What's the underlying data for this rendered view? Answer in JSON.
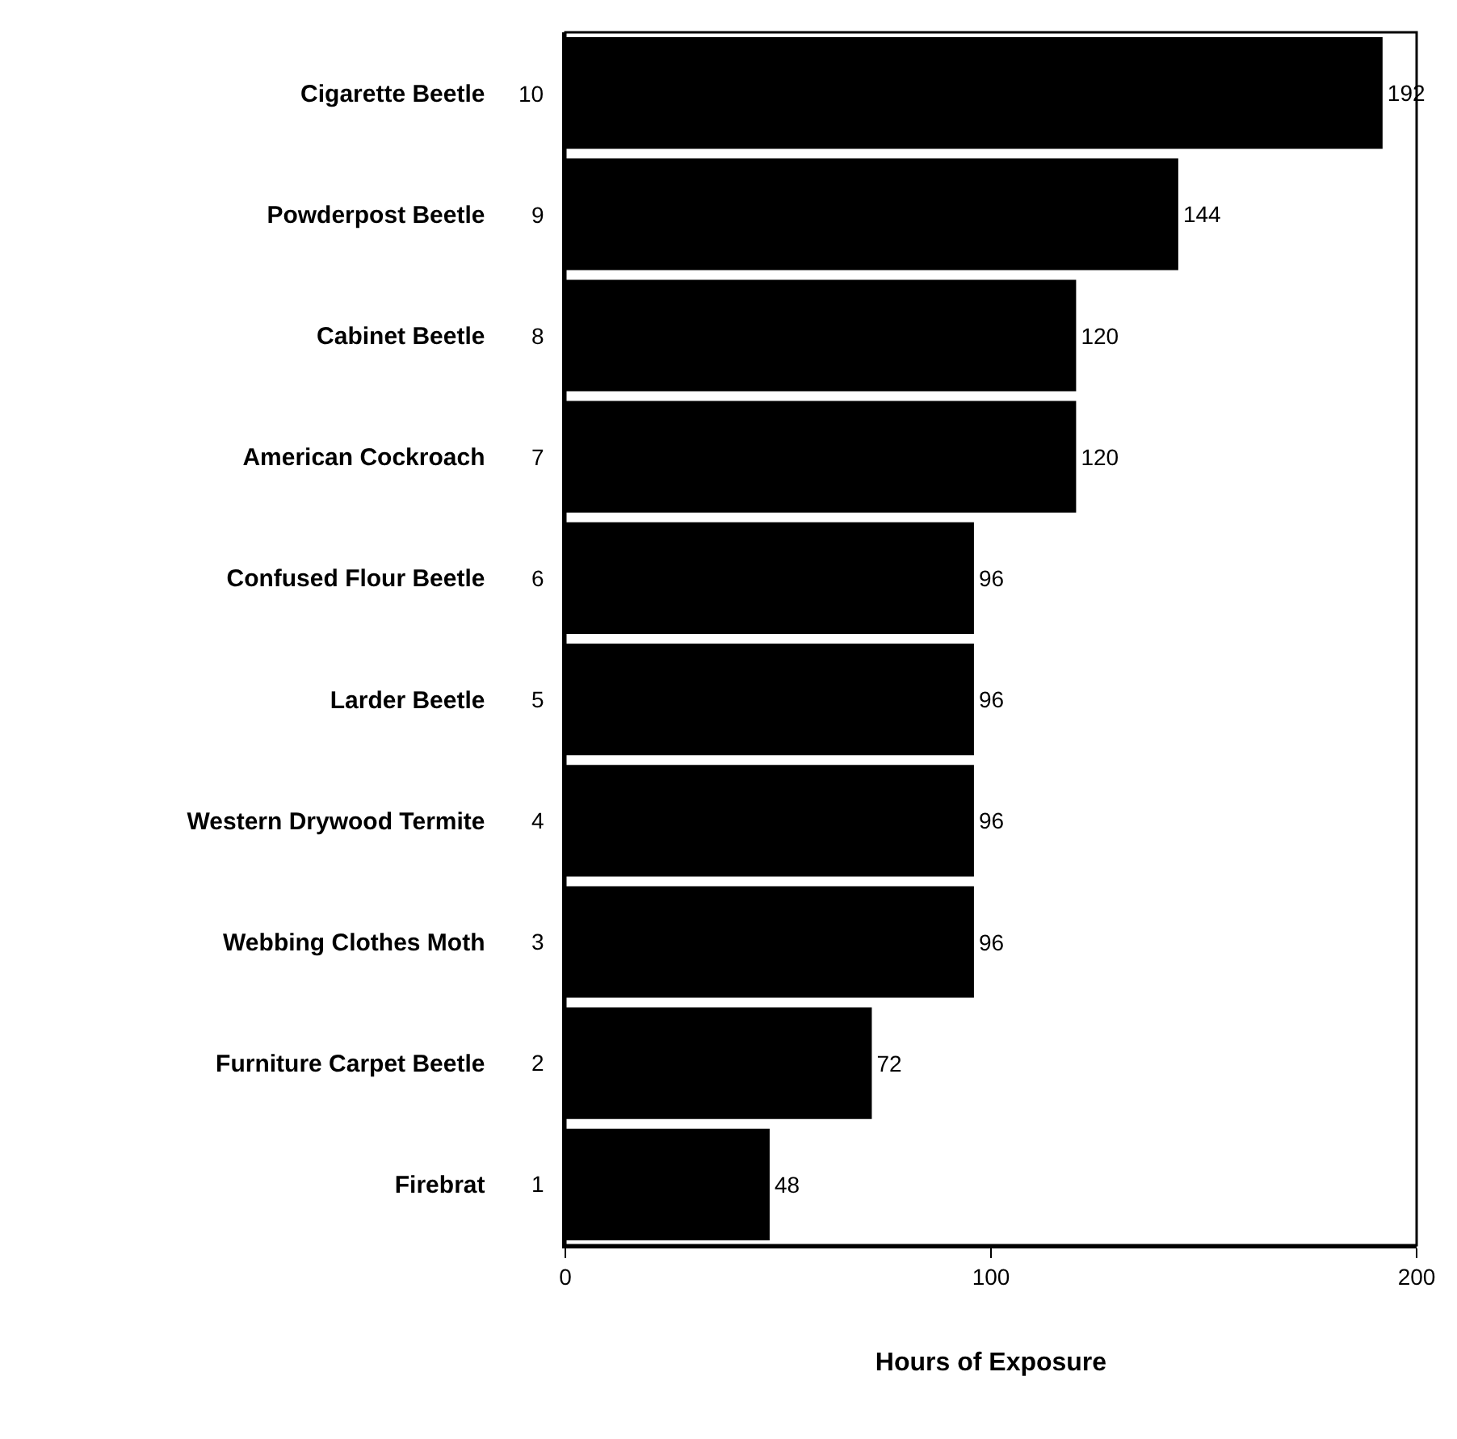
{
  "chart_data": {
    "type": "bar",
    "orientation": "horizontal",
    "xlabel": "Hours of Exposure",
    "categories": [
      "Cigarette Beetle",
      "Powderpost Beetle",
      "Cabinet Beetle",
      "American Cockroach",
      "Confused Flour Beetle",
      "Larder Beetle",
      "Western Drywood Termite",
      "Webbing Clothes Moth",
      "Furniture Carpet Beetle",
      "Firebrat"
    ],
    "values": [
      192,
      144,
      120,
      120,
      96,
      96,
      96,
      96,
      72,
      48
    ],
    "color": "#000000",
    "data_labels": true,
    "xlim": [
      0,
      200
    ],
    "xticks": [
      0,
      100,
      200
    ],
    "grid": false,
    "annotations": [
      "10",
      "9",
      "8",
      "7",
      "6",
      "5",
      "4",
      "3",
      "2",
      "1"
    ]
  }
}
